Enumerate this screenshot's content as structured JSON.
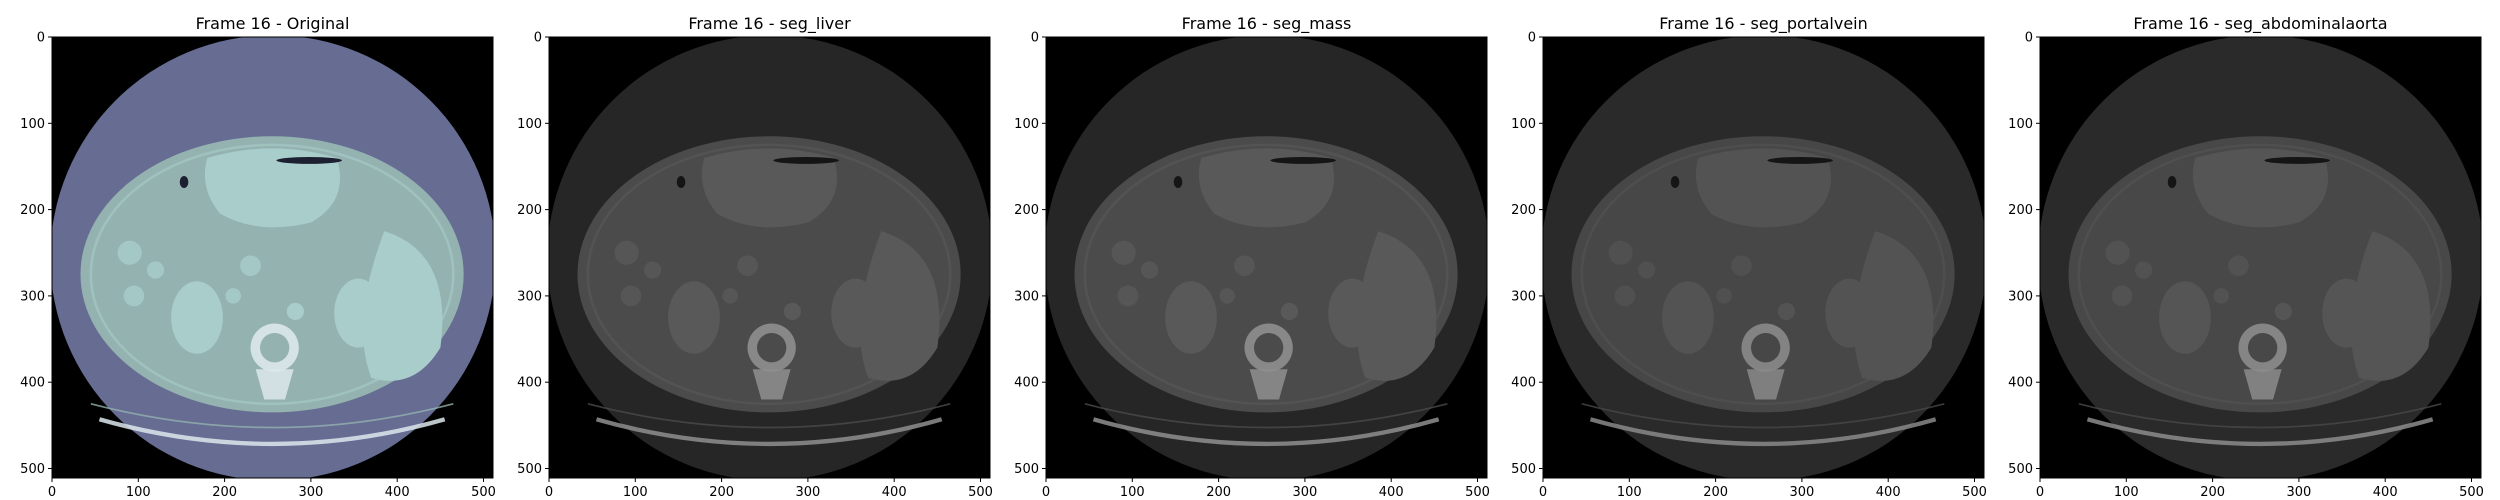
{
  "figure": {
    "panels": [
      {
        "title": "Frame 16 - Original",
        "style": "bone-colormap",
        "colors": {
          "disk": "#666c92",
          "body": "#93b2b0",
          "organ": "#a8cdca",
          "bone": "#dde8ec",
          "air": "#1c2030"
        }
      },
      {
        "title": "Frame 16 - seg_liver",
        "style": "gray-overlay",
        "colors": {
          "disk": "#262626",
          "body": "#4b4b4b",
          "organ": "#595959",
          "bone": "#8f8f8f",
          "air": "#151515"
        }
      },
      {
        "title": "Frame 16 - seg_mass",
        "style": "gray-overlay",
        "colors": {
          "disk": "#262626",
          "body": "#4b4b4b",
          "organ": "#595959",
          "bone": "#8f8f8f",
          "air": "#151515"
        }
      },
      {
        "title": "Frame 16 - seg_portalvein",
        "style": "gray-overlay",
        "colors": {
          "disk": "#2a2a2a",
          "body": "#474747",
          "organ": "#535353",
          "bone": "#8a8a8a",
          "air": "#151515"
        }
      },
      {
        "title": "Frame 16 - seg_abdominalaorta",
        "style": "gray-overlay",
        "colors": {
          "disk": "#2a2a2a",
          "body": "#484848",
          "organ": "#555555",
          "bone": "#8c8c8c",
          "air": "#151515"
        }
      }
    ],
    "axes": {
      "x_ticks": [
        "0",
        "100",
        "200",
        "300",
        "400",
        "500"
      ],
      "y_ticks": [
        "0",
        "100",
        "200",
        "300",
        "400",
        "500"
      ],
      "x_tick_values": [
        0,
        100,
        200,
        300,
        400,
        500
      ],
      "y_tick_values": [
        0,
        100,
        200,
        300,
        400,
        500
      ],
      "extent": [
        0,
        511
      ]
    }
  }
}
